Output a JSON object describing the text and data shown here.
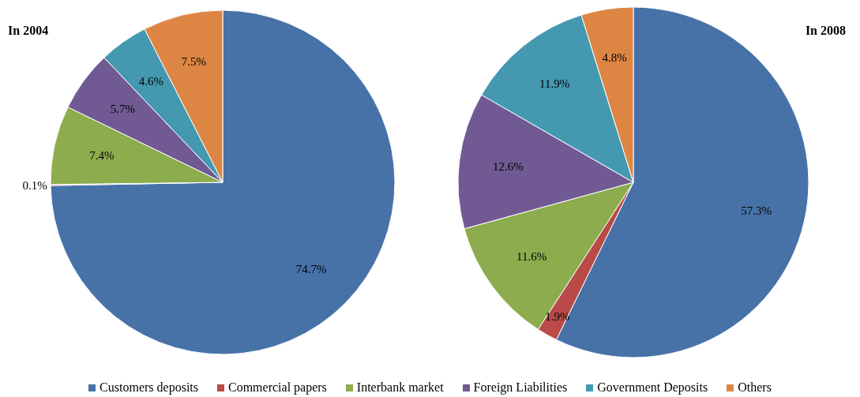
{
  "chart_data": {
    "type": "pie",
    "categories": [
      "Customers deposits",
      "Commercial papers",
      "Interbank market",
      "Foreign Liabilities",
      "Government Deposits",
      "Others"
    ],
    "colors": [
      "#4672a8",
      "#b94a48",
      "#8cac4e",
      "#715a93",
      "#4499b1",
      "#dd8644"
    ],
    "legend": "bottom",
    "series": [
      {
        "name": "In 2004",
        "values": [
          74.7,
          0.1,
          7.4,
          5.7,
          4.6,
          7.5
        ],
        "value_labels": [
          "74.7%",
          "0.1%",
          "7.4%",
          "5.7%",
          "4.6%",
          "7.5%"
        ]
      },
      {
        "name": "In 2008",
        "values": [
          57.3,
          1.9,
          11.6,
          12.6,
          11.9,
          4.8
        ],
        "value_labels": [
          "57.3%",
          "1.9%",
          "11.6%",
          "12.6%",
          "11.9%",
          "4.8%"
        ]
      }
    ]
  }
}
